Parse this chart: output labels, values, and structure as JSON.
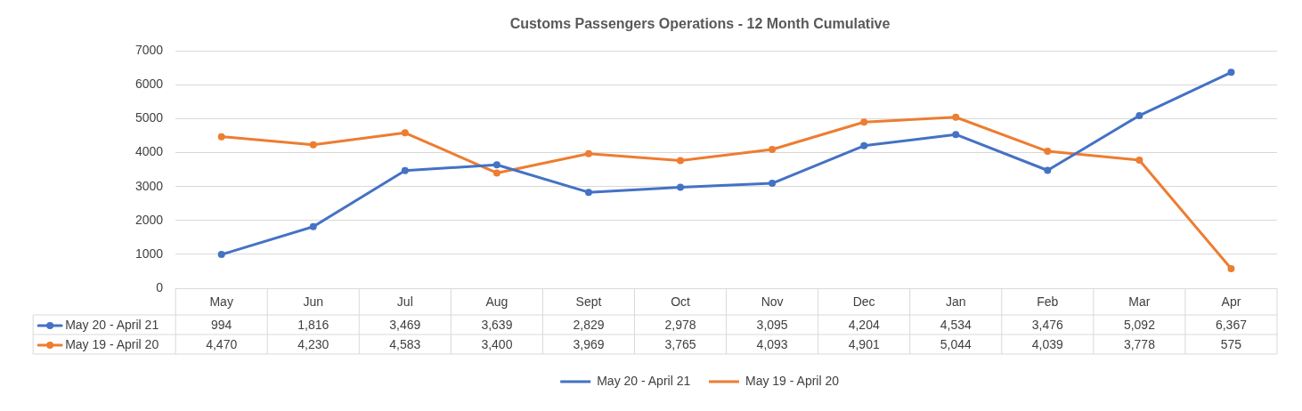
{
  "chart_data": {
    "type": "line",
    "title": "Customs Passengers Operations - 12 Month Cumulative",
    "categories": [
      "May",
      "Jun",
      "Jul",
      "Aug",
      "Sept",
      "Oct",
      "Nov",
      "Dec",
      "Jan",
      "Feb",
      "Mar",
      "Apr"
    ],
    "series": [
      {
        "name": "May 20 - April 21",
        "color": "#4472c4",
        "values": [
          994,
          1816,
          3469,
          3639,
          2829,
          2978,
          3095,
          4204,
          4534,
          3476,
          5092,
          6367
        ],
        "value_labels": [
          "994",
          "1,816",
          "3,469",
          "3,639",
          "2,829",
          "2,978",
          "3,095",
          "4,204",
          "4,534",
          "3,476",
          "5,092",
          "6,367"
        ]
      },
      {
        "name": "May 19 - April 20",
        "color": "#ed7d31",
        "values": [
          4470,
          4230,
          4583,
          3400,
          3969,
          3765,
          4093,
          4901,
          5044,
          4039,
          3778,
          575
        ],
        "value_labels": [
          "4,470",
          "4,230",
          "4,583",
          "3,400",
          "3,969",
          "3,765",
          "4,093",
          "4,901",
          "5,044",
          "4,039",
          "3,778",
          "575"
        ]
      }
    ],
    "ylim": [
      0,
      7000
    ],
    "yticks": [
      0,
      1000,
      2000,
      3000,
      4000,
      5000,
      6000,
      7000
    ],
    "grid": "y",
    "legend": "bottom",
    "marker": "circle",
    "line_style": "solid"
  }
}
